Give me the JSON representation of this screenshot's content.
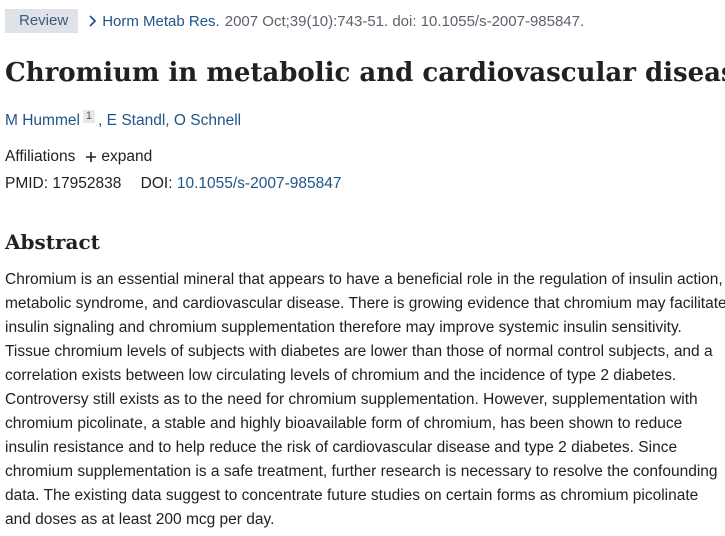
{
  "citation": {
    "badge": "Review",
    "journal": "Horm Metab Res.",
    "details": "2007 Oct;39(10):743-51. doi: 10.1055/s-2007-985847."
  },
  "article": {
    "title": "Chromium in metabolic and cardiovascular disease",
    "authors": [
      {
        "name": "M Hummel",
        "sup": "1"
      },
      {
        "name": "E Standl"
      },
      {
        "name": "O Schnell"
      }
    ],
    "author_sep": ","
  },
  "affiliations": {
    "label": "Affiliations",
    "expand_label": "expand"
  },
  "identifiers": {
    "pmid_label": "PMID:",
    "pmid": "17952838",
    "doi_label": "DOI:",
    "doi": "10.1055/s-2007-985847"
  },
  "abstract": {
    "heading": "Abstract",
    "text": "Chromium is an essential mineral that appears to have a beneficial role in the regulation of insulin action, metabolic syndrome, and cardiovascular disease. There is growing evidence that chromium may facilitate insulin signaling and chromium supplementation therefore may improve systemic insulin sensitivity. Tissue chromium levels of subjects with diabetes are lower than those of normal control subjects, and a correlation exists between low circulating levels of chromium and the incidence of type 2 diabetes. Controversy still exists as to the need for chromium supplementation. However, supplementation with chromium picolinate, a stable and highly bioavailable form of chromium, has been shown to reduce insulin resistance and to help reduce the risk of cardiovascular disease and type 2 diabetes. Since chromium supplementation is a safe treatment, further research is necessary to resolve the confounding data. The existing data suggest to concentrate future studies on certain forms as chromium picolinate and doses as at least 200 mcg per day."
  },
  "icons": {
    "chevron": "chevron-right-icon",
    "expand": "plus-icon"
  },
  "colors": {
    "link": "#20558a",
    "badge_bg": "#dfe3e8",
    "badge_text": "#3a5a80",
    "muted": "#5b616b"
  }
}
